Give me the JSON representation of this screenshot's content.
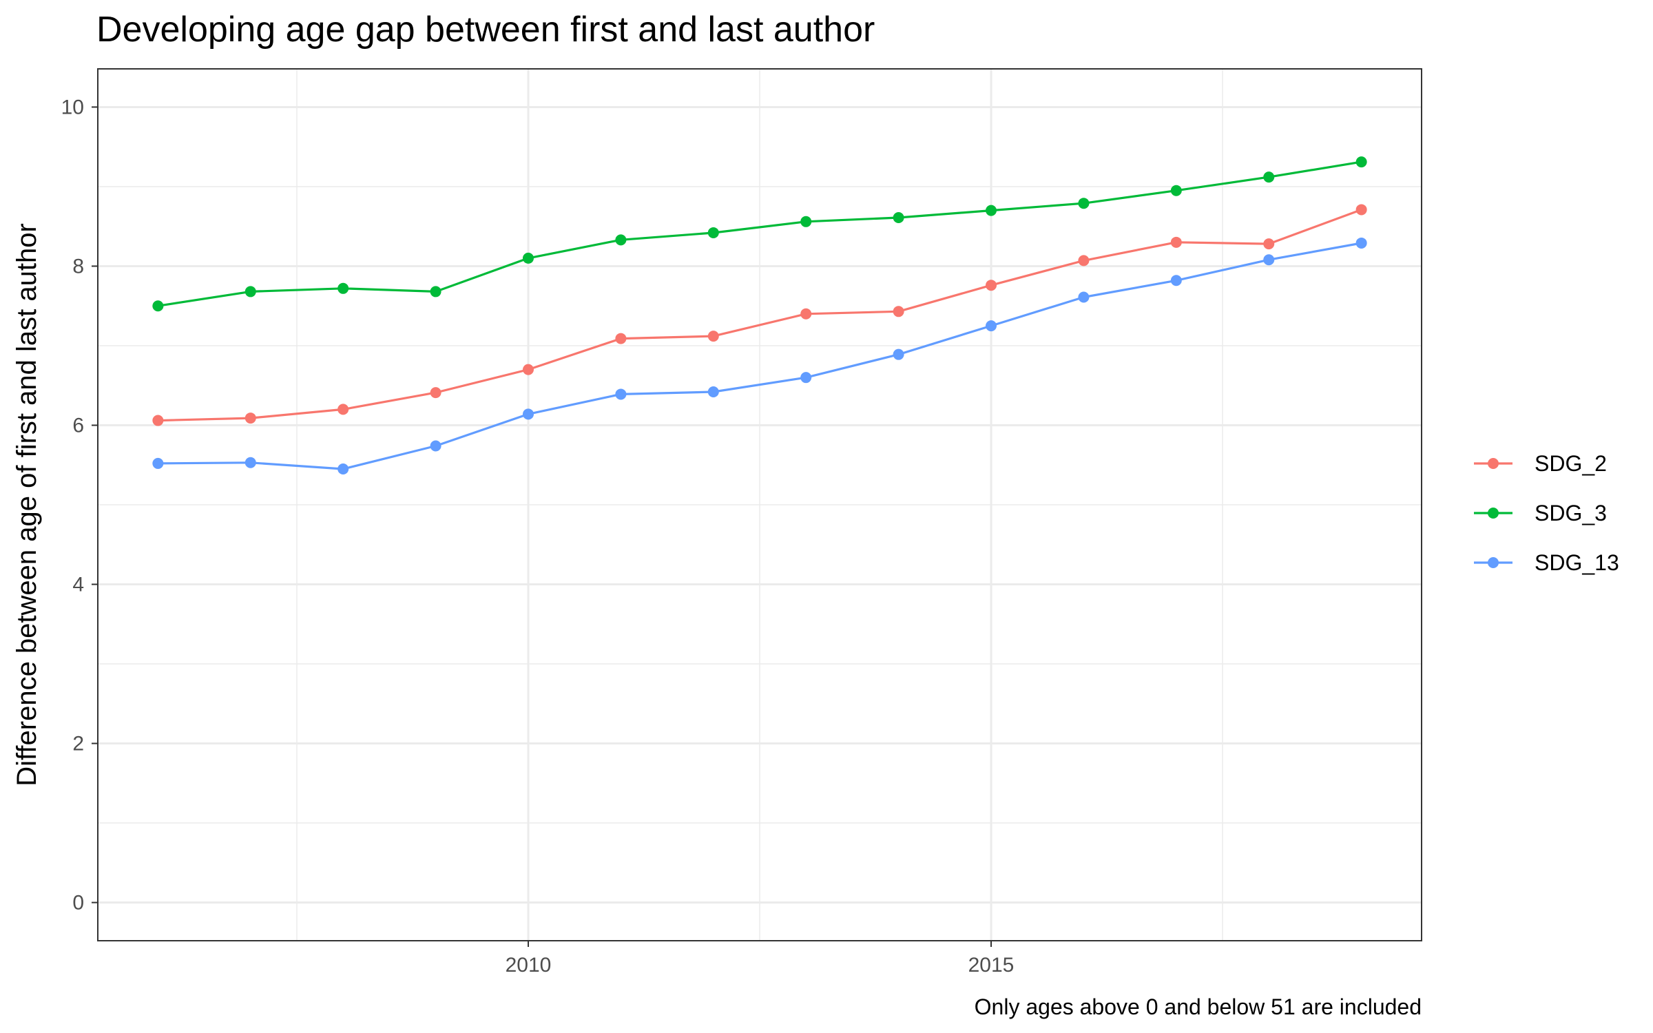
{
  "chart_data": {
    "type": "line",
    "title": "Developing age gap between first and last author",
    "xlabel": "",
    "ylabel": "Difference between age of first and last author",
    "caption": "Only ages above 0 and below 51 are included",
    "x": [
      2006,
      2007,
      2008,
      2009,
      2010,
      2011,
      2012,
      2013,
      2014,
      2015,
      2016,
      2017,
      2018,
      2019
    ],
    "xlim": [
      2005.35,
      2019.65
    ],
    "ylim": [
      -0.48,
      10.48
    ],
    "x_ticks": [
      2010,
      2015
    ],
    "x_tick_labels": [
      "2010",
      "2015"
    ],
    "y_ticks": [
      0,
      2,
      4,
      6,
      8,
      10
    ],
    "y_tick_labels": [
      "0",
      "2",
      "4",
      "6",
      "8",
      "10"
    ],
    "grid": true,
    "legend_position": "right",
    "series": [
      {
        "name": "SDG_2",
        "color": "#F8766D",
        "values": [
          6.06,
          6.09,
          6.2,
          6.41,
          6.7,
          7.09,
          7.12,
          7.4,
          7.43,
          7.76,
          8.07,
          8.3,
          8.28,
          8.71
        ]
      },
      {
        "name": "SDG_3",
        "color": "#00BA38",
        "values": [
          7.5,
          7.68,
          7.72,
          7.68,
          8.1,
          8.33,
          8.42,
          8.56,
          8.61,
          8.7,
          8.79,
          8.95,
          9.12,
          9.31
        ]
      },
      {
        "name": "SDG_13",
        "color": "#619CFF",
        "values": [
          5.52,
          5.53,
          5.45,
          5.74,
          6.14,
          6.39,
          6.42,
          6.6,
          6.89,
          7.25,
          7.61,
          7.82,
          8.08,
          8.29
        ]
      }
    ]
  }
}
